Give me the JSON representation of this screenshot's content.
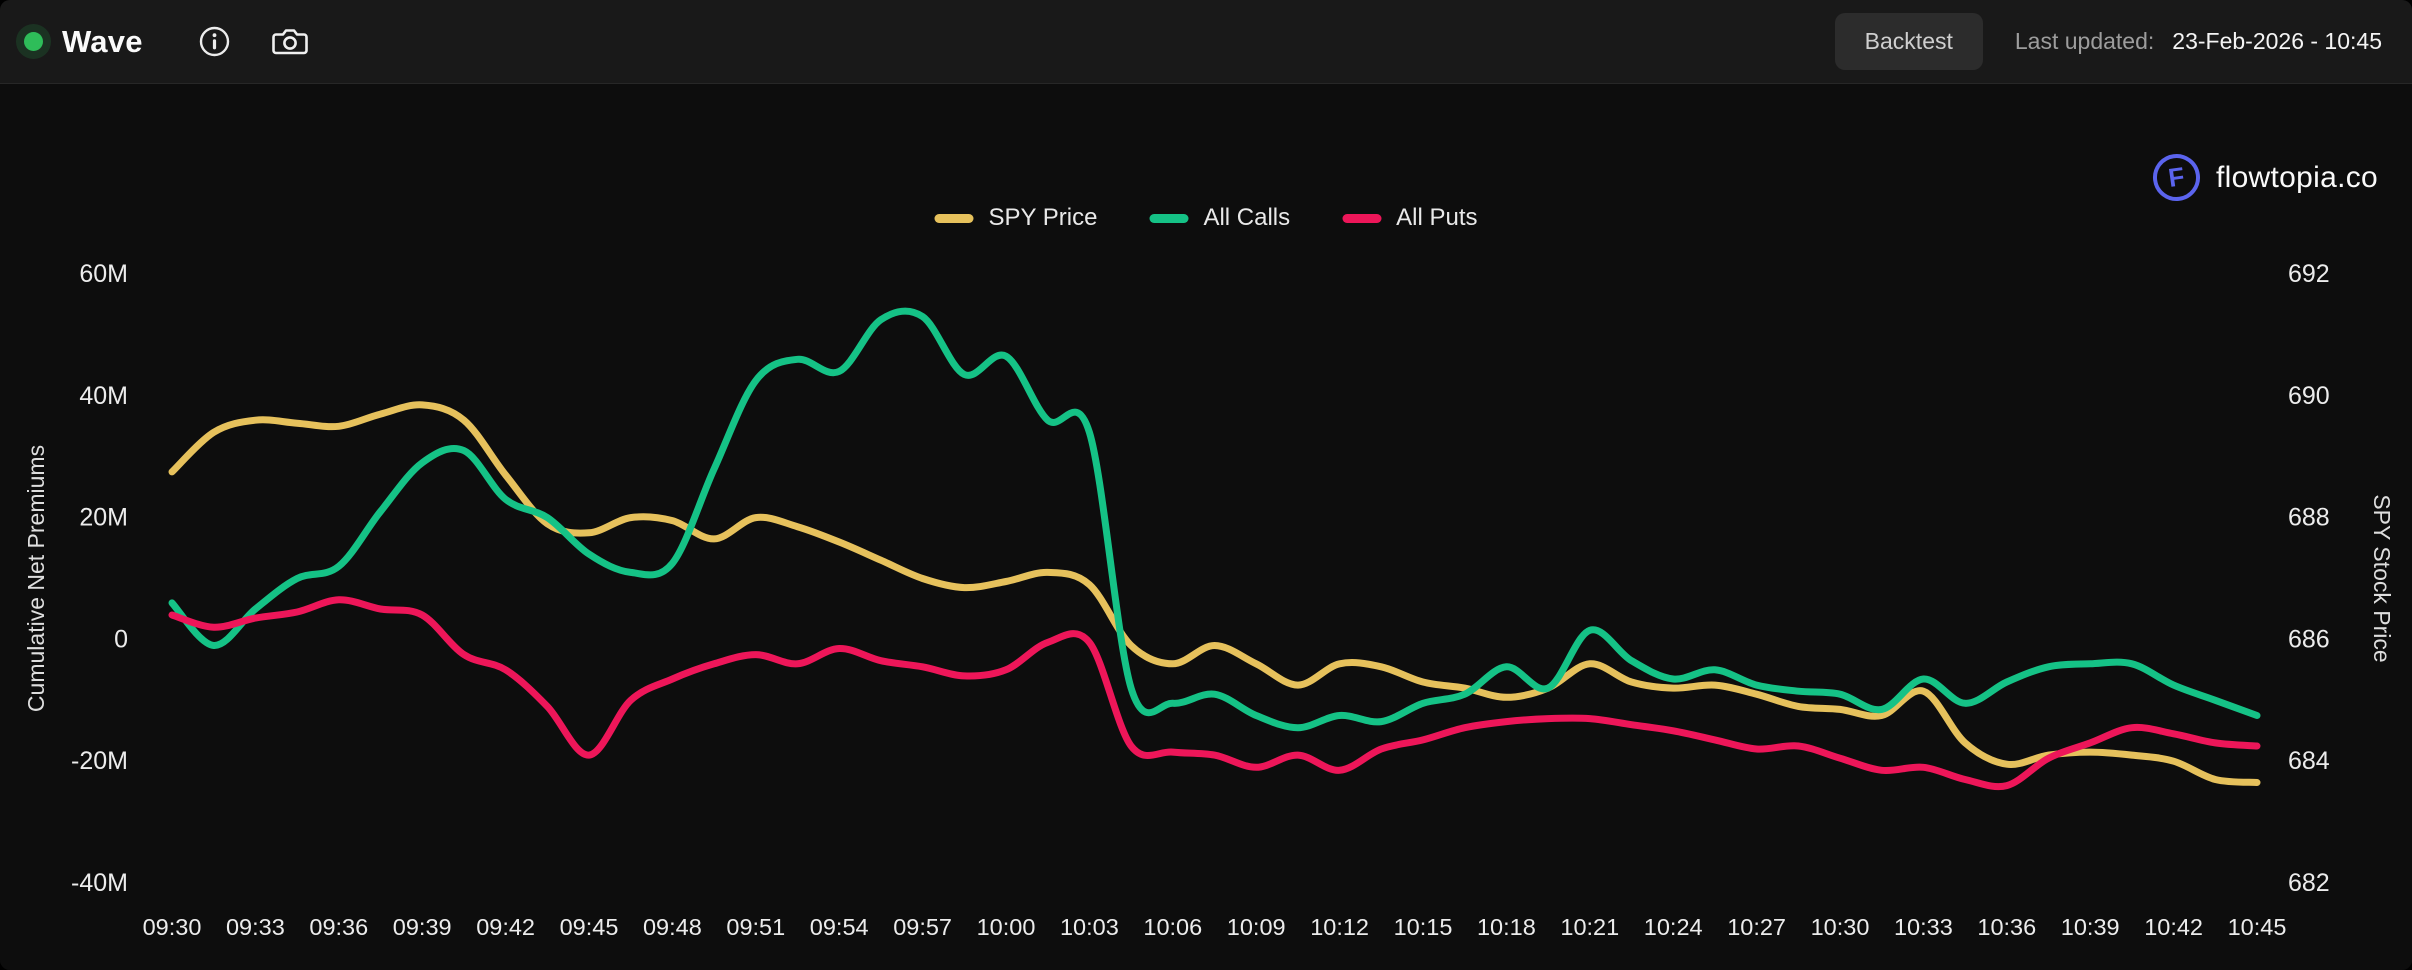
{
  "header": {
    "title": "Wave",
    "status": "live",
    "backtest_label": "Backtest",
    "last_updated_label": "Last updated:",
    "last_updated_value": "23-Feb-2026 - 10:45"
  },
  "brand": {
    "name": "flowtopia.co",
    "icon_letter": "F"
  },
  "chart_data": {
    "type": "line",
    "title": "",
    "grid": false,
    "background": "#0d0d0d",
    "legend_position": "top-center",
    "x": {
      "start_min": 0,
      "step_min": 1.5,
      "tick_every_min": 3,
      "tick_labels": [
        "09:30",
        "09:33",
        "09:36",
        "09:39",
        "09:42",
        "09:45",
        "09:48",
        "09:51",
        "09:54",
        "09:57",
        "10:00",
        "10:03",
        "10:06",
        "10:09",
        "10:12",
        "10:15",
        "10:18",
        "10:21",
        "10:24",
        "10:27",
        "10:30",
        "10:33",
        "10:36",
        "10:39",
        "10:42",
        "10:45"
      ]
    },
    "y_left": {
      "title": "Cumulative Net Premiums",
      "tick_labels": [
        "60M",
        "40M",
        "20M",
        "0",
        "-20M",
        "-40M"
      ],
      "tick_values": [
        60,
        40,
        20,
        0,
        -20,
        -40
      ],
      "unit": "M"
    },
    "y_right": {
      "title": "SPY Stock Price",
      "tick_labels": [
        "692",
        "690",
        "688",
        "686",
        "684",
        "682"
      ],
      "tick_values": [
        692,
        690,
        688,
        686,
        684,
        682
      ]
    },
    "series": [
      {
        "name": "SPY Price",
        "color": "#e6c15c",
        "axis": "right",
        "values": [
          688.75,
          689.4,
          689.6,
          689.55,
          689.5,
          689.7,
          689.85,
          689.6,
          688.7,
          687.9,
          687.75,
          688.0,
          687.95,
          687.65,
          688.0,
          687.85,
          687.6,
          687.3,
          687.0,
          686.85,
          686.95,
          687.1,
          686.9,
          685.9,
          685.6,
          685.9,
          685.6,
          685.25,
          685.6,
          685.55,
          685.3,
          685.2,
          685.05,
          685.2,
          685.6,
          685.3,
          685.2,
          685.25,
          685.1,
          684.9,
          684.85,
          684.75,
          685.15,
          684.3,
          683.95,
          684.1,
          684.15,
          684.1,
          684.0,
          683.7,
          683.65
        ]
      },
      {
        "name": "All Calls",
        "color": "#15c286",
        "axis": "left",
        "values": [
          6,
          -1,
          5,
          10,
          12,
          21,
          29,
          31,
          23,
          20,
          14,
          11,
          12.5,
          28,
          42.5,
          46,
          44,
          52.5,
          53,
          43.5,
          46.5,
          36,
          34,
          -8,
          -10.5,
          -9,
          -12.5,
          -14.5,
          -12.5,
          -13.5,
          -10.5,
          -9,
          -4.5,
          -8,
          1.5,
          -3.5,
          -6.5,
          -5,
          -7.5,
          -8.5,
          -9,
          -11.5,
          -6.5,
          -10.5,
          -7,
          -4.5,
          -4,
          -4,
          -7.5,
          -10,
          -12.5
        ]
      },
      {
        "name": "All Puts",
        "color": "#ed1659",
        "axis": "left",
        "values": [
          4,
          2,
          3.5,
          4.5,
          6.5,
          5,
          4,
          -2.5,
          -5,
          -11,
          -19,
          -10,
          -6.5,
          -4,
          -2.5,
          -4,
          -1.5,
          -3.5,
          -4.5,
          -6,
          -5,
          -0.5,
          -0.5,
          -17.5,
          -18.5,
          -19,
          -21,
          -19,
          -21.5,
          -18,
          -16.5,
          -14.5,
          -13.5,
          -13,
          -13,
          -14,
          -15,
          -16.5,
          -18,
          -17.5,
          -19.5,
          -21.5,
          -21,
          -23,
          -24,
          -19.5,
          -17,
          -14.5,
          -15.5,
          -17,
          -17.5
        ]
      }
    ]
  }
}
